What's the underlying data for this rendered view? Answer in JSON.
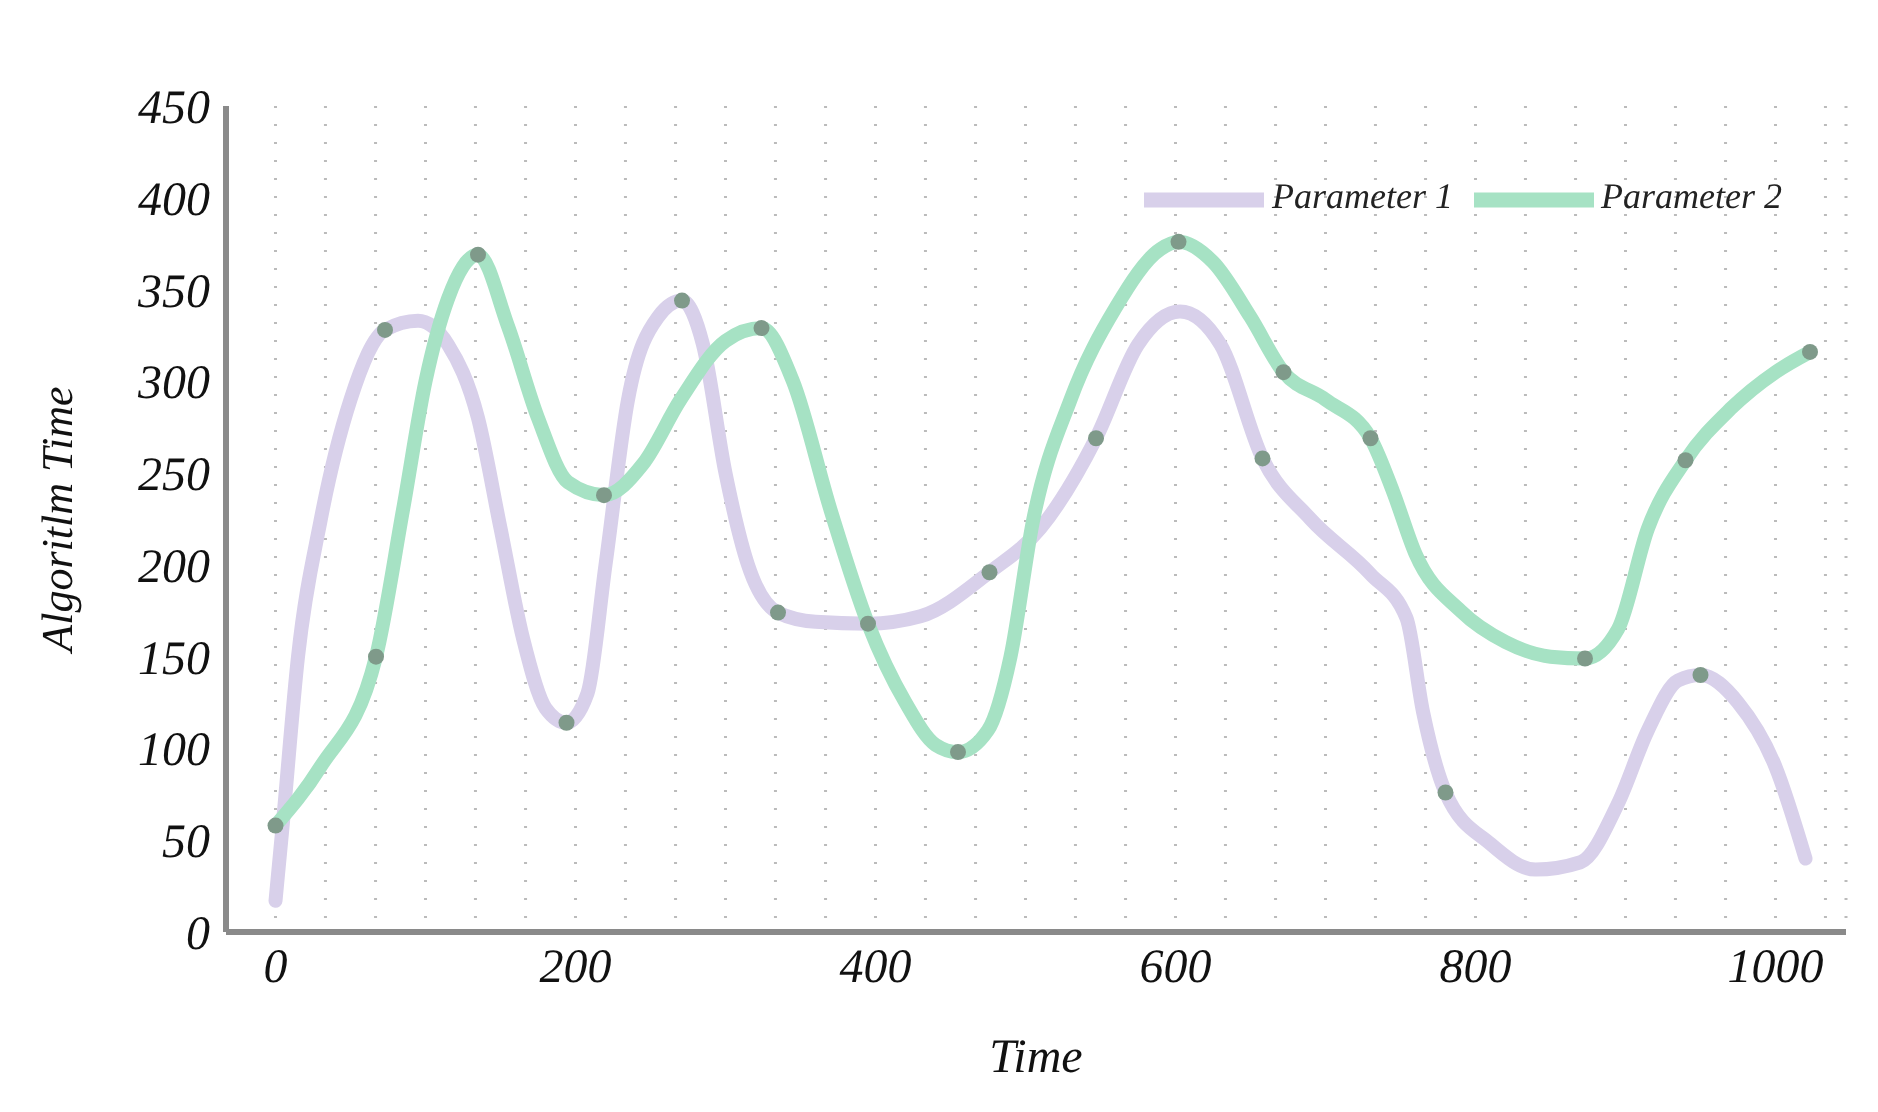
{
  "chart_data": {
    "type": "line",
    "xlabel": "Time",
    "ylabel": "Algoritlm Time",
    "xlim": [
      -33,
      1047
    ],
    "ylim": [
      0,
      450
    ],
    "xticks": [
      0,
      {
        "value": 33.3,
        "label": null
      },
      {
        "value": 66.7,
        "label": null
      },
      {
        "value": 100,
        "label": null
      },
      {
        "value": 133.3,
        "label": null
      },
      {
        "value": 166.7,
        "label": null
      },
      200,
      {
        "value": 233.3,
        "label": null
      },
      {
        "value": 266.7,
        "label": null
      },
      {
        "value": 300,
        "label": null
      },
      {
        "value": 333.3,
        "label": null
      },
      {
        "value": 366.7,
        "label": null
      },
      400,
      {
        "value": 433.3,
        "label": null
      },
      {
        "value": 466.7,
        "label": null
      },
      {
        "value": 500,
        "label": null
      },
      {
        "value": 533.3,
        "label": null
      },
      {
        "value": 566.7,
        "label": null
      },
      600,
      {
        "value": 633.3,
        "label": null
      },
      {
        "value": 666.7,
        "label": null
      },
      {
        "value": 700,
        "label": null
      },
      {
        "value": 733.3,
        "label": null
      },
      {
        "value": 766.7,
        "label": null
      },
      800,
      {
        "value": 833.3,
        "label": null
      },
      {
        "value": 866.7,
        "label": null
      },
      {
        "value": 900,
        "label": null
      },
      {
        "value": 933.3,
        "label": null
      },
      {
        "value": 966.7,
        "label": null
      },
      1000,
      {
        "value": 1033.3,
        "label": null
      }
    ],
    "yticks": [
      0,
      50,
      100,
      150,
      200,
      250,
      300,
      350,
      400,
      450
    ],
    "grid": "x",
    "legend": "top right",
    "marker": "circle",
    "line_style": "solid",
    "series": [
      {
        "name": "Parameter 1",
        "color": "#d8d0ea",
        "marker": "none",
        "x": [
          0,
          5,
          15,
          30,
          50,
          73,
          95,
          115,
          135,
          150,
          165,
          180,
          194,
          208,
          220,
          235,
          255,
          271,
          285,
          300,
          315,
          335,
          360,
          395,
          430,
          476,
          510,
          547,
          575,
          603,
          630,
          658,
          690,
          730,
          754,
          765,
          780,
          810,
          840,
          870,
          895,
          915,
          935,
          950,
          975,
          1000,
          1020
        ],
        "values": [
          17,
          60,
          150,
          224,
          290,
          328,
          333,
          320,
          280,
          220,
          160,
          122,
          114,
          130,
          200,
          290,
          335,
          344,
          320,
          250,
          200,
          174,
          169,
          168,
          172,
          196,
          220,
          269,
          320,
          338,
          320,
          258,
          225,
          195,
          171,
          120,
          76,
          48,
          34,
          38,
          70,
          110,
          137,
          140,
          125,
          90,
          40
        ]
      },
      {
        "name": "Parameter 2",
        "color": "#a6e2c4",
        "marker": "none",
        "x": [
          0,
          30,
          67,
          85,
          100,
          115,
          135,
          155,
          175,
          195,
          219,
          245,
          270,
          300,
          324,
          345,
          370,
          395,
          420,
          440,
          455,
          475,
          490,
          505,
          530,
          560,
          590,
          602,
          625,
          650,
          672,
          700,
          730,
          745,
          760,
          790,
          820,
          850,
          873,
          895,
          915,
          940,
          970,
          1000,
          1023
        ],
        "values": [
          58,
          90,
          150,
          230,
          300,
          345,
          369,
          330,
          280,
          245,
          238,
          255,
          290,
          322,
          329,
          300,
          230,
          168,
          125,
          102,
          98,
          110,
          150,
          224,
          290,
          340,
          372,
          376,
          365,
          335,
          305,
          290,
          269,
          240,
          206,
          175,
          158,
          150,
          149,
          165,
          220,
          257,
          285,
          305,
          316
        ]
      },
      {
        "type": "scatter",
        "color": "#7f9a8a",
        "x": [
          0,
          67,
          73,
          135,
          194,
          219,
          271,
          324,
          335,
          395,
          455,
          476,
          547,
          602,
          658,
          672,
          730,
          780,
          873,
          940,
          950,
          1023
        ],
        "values": [
          58,
          150,
          328,
          369,
          114,
          238,
          344,
          329,
          174,
          168,
          98,
          196,
          269,
          376,
          258,
          305,
          269,
          76,
          149,
          257,
          140,
          316
        ]
      }
    ]
  }
}
